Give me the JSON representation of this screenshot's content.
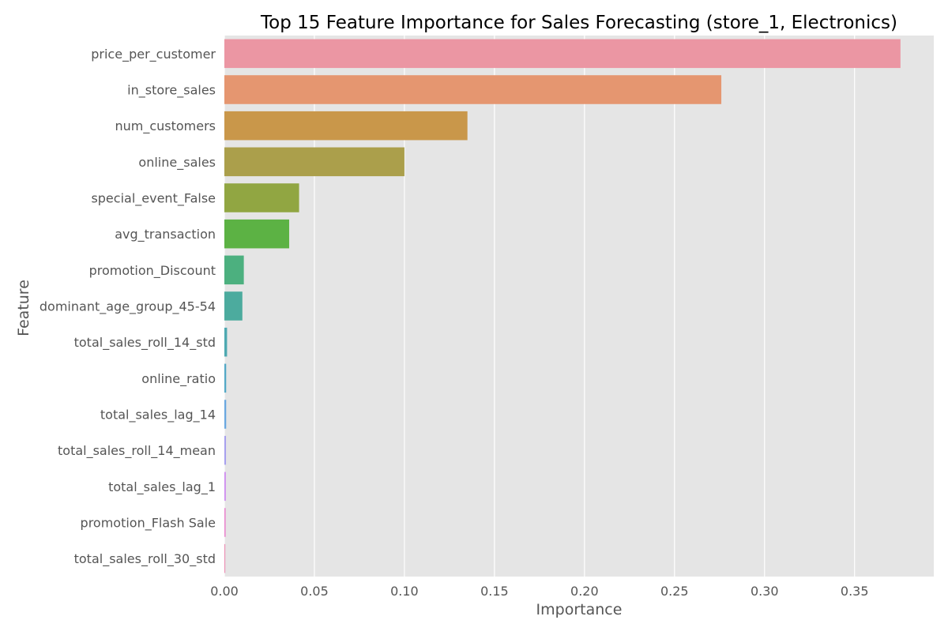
{
  "chart_data": {
    "type": "bar",
    "orientation": "horizontal",
    "title": "Top 15 Feature Importance for Sales Forecasting (store_1, Electronics)",
    "xlabel": "Importance",
    "ylabel": "Feature",
    "xlim": [
      0,
      0.394
    ],
    "xticks": [
      "0.00",
      "0.05",
      "0.10",
      "0.15",
      "0.20",
      "0.25",
      "0.30",
      "0.35"
    ],
    "grid": true,
    "legend": "none",
    "categories": [
      "price_per_customer",
      "in_store_sales",
      "num_customers",
      "online_sales",
      "special_event_False",
      "avg_transaction",
      "promotion_Discount",
      "dominant_age_group_45-54",
      "total_sales_roll_14_std",
      "online_ratio",
      "total_sales_lag_14",
      "total_sales_roll_14_mean",
      "total_sales_lag_1",
      "promotion_Flash Sale",
      "total_sales_roll_30_std"
    ],
    "values": [
      0.3755,
      0.276,
      0.135,
      0.1,
      0.0415,
      0.036,
      0.0108,
      0.01,
      0.0015,
      0.001,
      0.001,
      0.0009,
      0.0008,
      0.0007,
      0.0005
    ],
    "colors": [
      "#eb96a3",
      "#e59670",
      "#c9974a",
      "#ab9f4b",
      "#91a642",
      "#5cb244",
      "#4cb07f",
      "#4cab9e",
      "#4ea9b1",
      "#53a9c6",
      "#6aa8e0",
      "#a7a0ee",
      "#cf8df0",
      "#eb87cf",
      "#ec8fb4"
    ]
  }
}
